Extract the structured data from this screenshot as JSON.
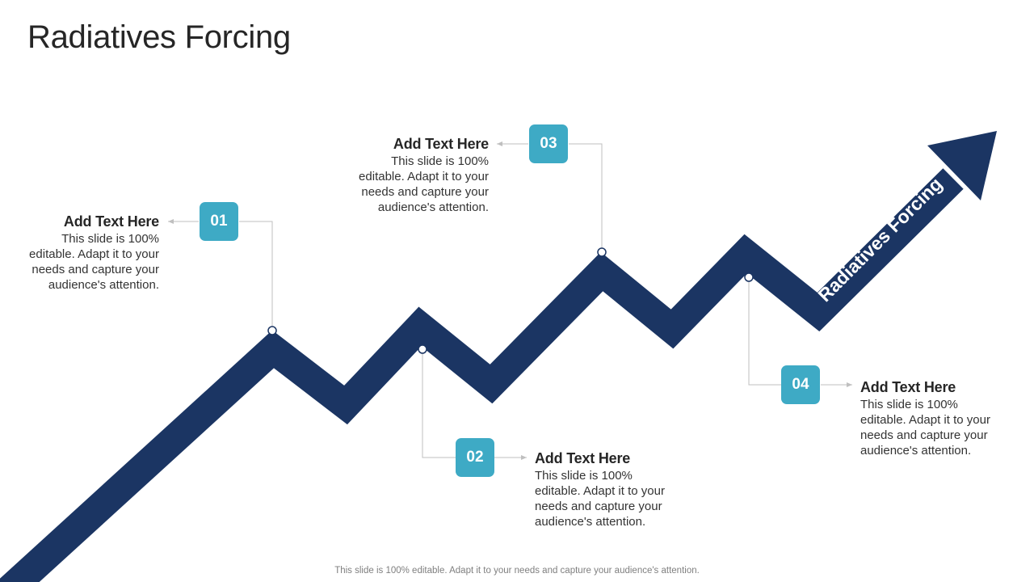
{
  "slide": {
    "title": "Radiatives Forcing",
    "arrow_label": "Radiatives Forcing",
    "footer": "This slide is 100% editable. Adapt it to your needs and capture your audience's attention."
  },
  "colors": {
    "arrow": "#1b3563",
    "badge": "#3eaac5",
    "connector": "#bfbfbf"
  },
  "steps": [
    {
      "number": "01",
      "heading": "Add Text Here",
      "body": "This slide is 100% editable. Adapt it to your needs and capture your audience's attention."
    },
    {
      "number": "02",
      "heading": "Add Text Here",
      "body": "This slide is 100% editable. Adapt it to your needs and capture your audience's attention."
    },
    {
      "number": "03",
      "heading": "Add Text Here",
      "body": "This slide is 100% editable. Adapt it to your needs and capture your audience's attention."
    },
    {
      "number": "04",
      "heading": "Add Text Here",
      "body": "This slide is 100% editable. Adapt it to your needs and capture your audience's attention."
    }
  ]
}
